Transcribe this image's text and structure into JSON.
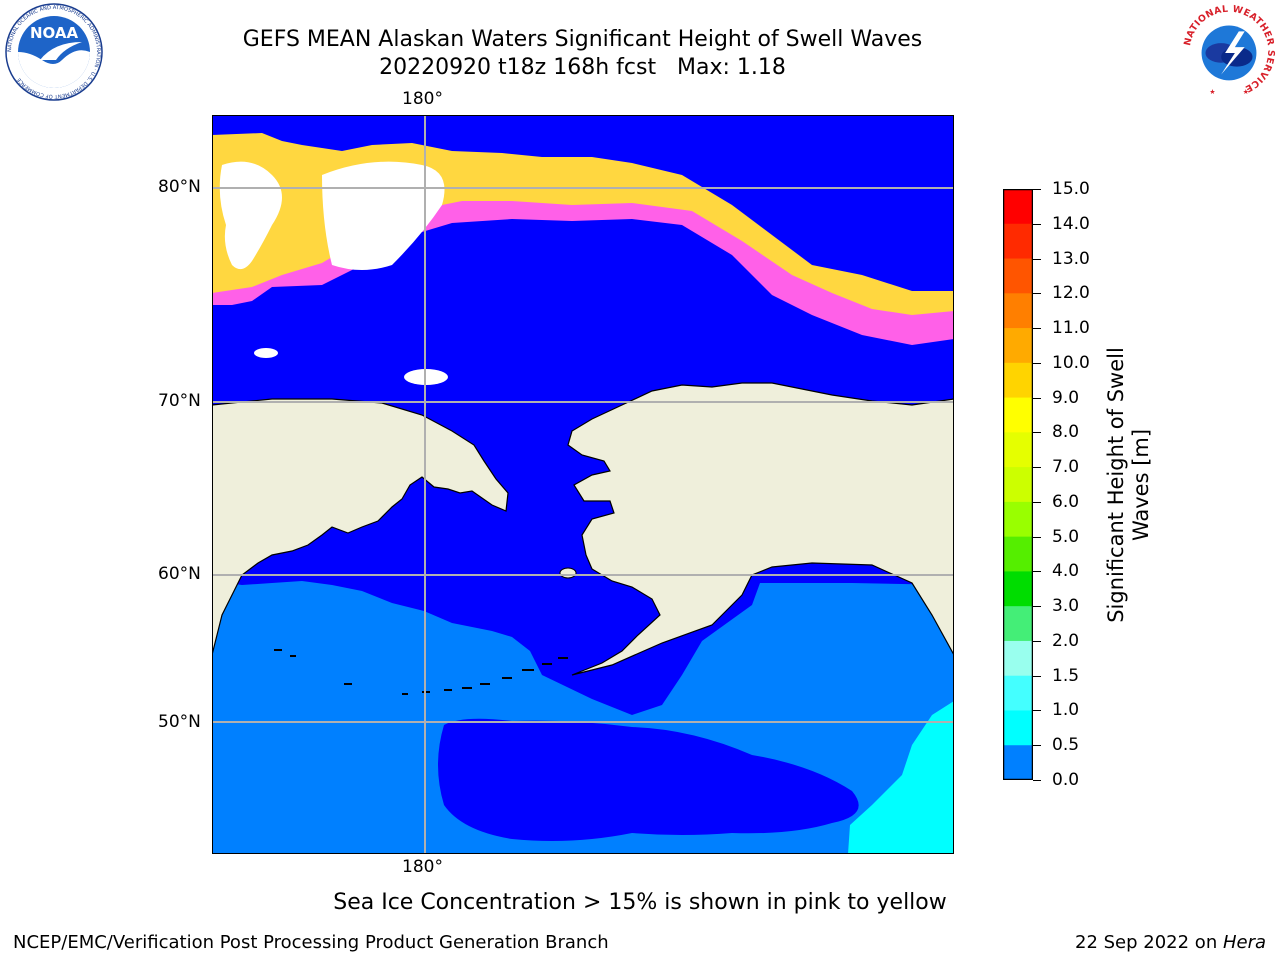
{
  "header": {
    "title_line1": "GEFS MEAN Alaskan Waters Significant Height of Swell Waves",
    "title_line2": "20220920 t18z 168h fcst   Max: 1.18"
  },
  "logos": {
    "left": {
      "icon": "noaa-logo",
      "text": "NOAA",
      "ring_text": "NATIONAL OCEANIC AND ATMOSPHERIC ADMINISTRATION · U.S. DEPARTMENT OF COMMERCE"
    },
    "right": {
      "icon": "nws-logo",
      "ring_text": "NATIONAL WEATHER SERVICE"
    }
  },
  "map": {
    "top_lon_label": "180°",
    "bottom_lon_label": "180°",
    "lat_labels": [
      "80°N",
      "70°N",
      "60°N",
      "50°N"
    ],
    "colors": {
      "wave_0_0_5": "#0000ff",
      "wave_0_5_1_0": "#0080ff",
      "wave_1_0_1_5": "#00ffff",
      "land": "#efefdb",
      "ice_pink": "#ff60e8",
      "ice_yellow": "#ffd740",
      "no_data": "#ffffff",
      "grid": "#b0b0b0"
    }
  },
  "colorbar": {
    "title_line1": "Significant Height of Swell",
    "title_line2": "Waves [m]",
    "labels": [
      "15.0",
      "14.0",
      "13.0",
      "12.0",
      "11.0",
      "10.0",
      "9.0",
      "8.0",
      "7.0",
      "6.0",
      "5.0",
      "4.0",
      "3.0",
      "2.0",
      "1.5",
      "1.0",
      "0.5",
      "0.0"
    ],
    "colors": [
      "#ff0000",
      "#ff2a00",
      "#ff5500",
      "#ff7f00",
      "#ffaa00",
      "#ffd400",
      "#ffff00",
      "#e5ff00",
      "#ccff00",
      "#99ff00",
      "#55ee00",
      "#00dd00",
      "#44ee77",
      "#99ffee",
      "#44ffff",
      "#00ffff",
      "#0080ff",
      "#0000ff"
    ]
  },
  "note": "Sea Ice Concentration > 15% is shown in pink to yellow",
  "footer": {
    "left": "NCEP/EMC/Verification Post Processing Product Generation Branch",
    "right_date": "22 Sep 2022 on ",
    "right_machine": "Hera"
  }
}
